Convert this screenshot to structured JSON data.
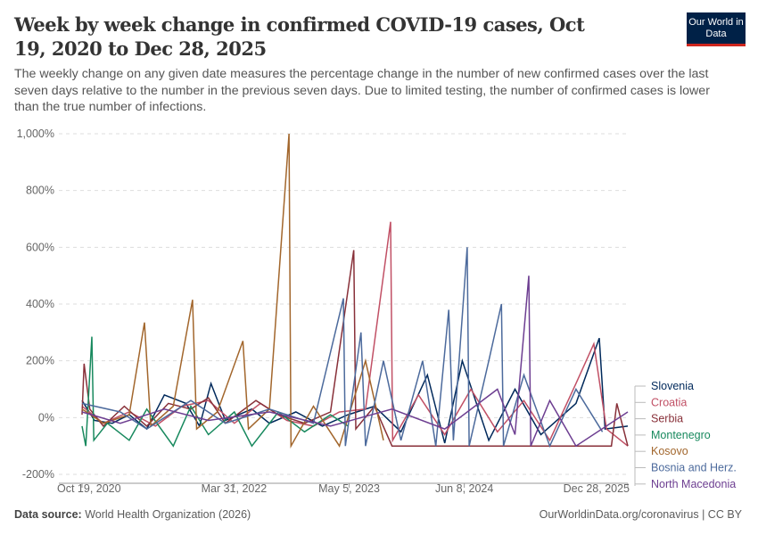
{
  "title": "Week by week change in confirmed COVID-19 cases, Oct 19, 2020 to Dec 28, 2025",
  "subtitle": "The weekly change on any given date measures the percentage change in the number of new confirmed cases over the last seven days relative to the number in the previous seven days. Due to limited testing, the number of confirmed cases is lower than the true number of infections.",
  "logo": "Our World in Data",
  "footer": {
    "source_label": "Data source:",
    "source": "World Health Organization (2026)",
    "right": "OurWorldinData.org/coronavirus | CC BY"
  },
  "chart_data": {
    "type": "line",
    "xlim": [
      "2020-10-19",
      "2025-12-28"
    ],
    "ylim": [
      -200,
      1000
    ],
    "y_ticks": [
      -200,
      0,
      200,
      400,
      600,
      800,
      1000
    ],
    "y_tick_labels": [
      "-200%",
      "0%",
      "200%",
      "400%",
      "600%",
      "800%",
      "1,000%"
    ],
    "x_ticks": [
      "2020-10-19",
      "2022-03-31",
      "2023-05-05",
      "2024-06-08",
      "2025-12-28"
    ],
    "x_tick_labels": [
      "Oct 19, 2020",
      "Mar 31, 2022",
      "May 5, 2023",
      "Jun 8, 2024",
      "Dec 28, 2025"
    ],
    "grid": true,
    "legend": "right",
    "series": [
      {
        "name": "Slovenia",
        "color": "#00295b",
        "points": [
          [
            "2020-10-19",
            60
          ],
          [
            "2020-12-01",
            -10
          ],
          [
            "2021-02-01",
            -20
          ],
          [
            "2021-04-01",
            10
          ],
          [
            "2021-06-01",
            -40
          ],
          [
            "2021-08-01",
            80
          ],
          [
            "2021-10-15",
            50
          ],
          [
            "2021-12-01",
            -30
          ],
          [
            "2022-01-10",
            120
          ],
          [
            "2022-03-01",
            -10
          ],
          [
            "2022-06-01",
            30
          ],
          [
            "2022-08-01",
            -20
          ],
          [
            "2022-11-01",
            20
          ],
          [
            "2023-02-01",
            -30
          ],
          [
            "2023-05-01",
            10
          ],
          [
            "2023-08-01",
            40
          ],
          [
            "2023-11-01",
            -50
          ],
          [
            "2024-02-01",
            150
          ],
          [
            "2024-04-01",
            -90
          ],
          [
            "2024-06-01",
            200
          ],
          [
            "2024-09-01",
            -80
          ],
          [
            "2024-12-01",
            100
          ],
          [
            "2025-03-01",
            -60
          ],
          [
            "2025-07-01",
            50
          ],
          [
            "2025-09-20",
            280
          ],
          [
            "2025-10-10",
            -40
          ],
          [
            "2025-12-28",
            -30
          ]
        ]
      },
      {
        "name": "Croatia",
        "color": "#c15065",
        "points": [
          [
            "2020-10-19",
            40
          ],
          [
            "2021-01-01",
            -20
          ],
          [
            "2021-04-01",
            20
          ],
          [
            "2021-07-01",
            -30
          ],
          [
            "2021-10-01",
            40
          ],
          [
            "2022-01-01",
            60
          ],
          [
            "2022-04-01",
            -20
          ],
          [
            "2022-07-01",
            50
          ],
          [
            "2022-10-01",
            -10
          ],
          [
            "2023-01-01",
            -30
          ],
          [
            "2023-04-01",
            20
          ],
          [
            "2023-07-01",
            30
          ],
          [
            "2023-09-26",
            690
          ],
          [
            "2023-10-03",
            -80
          ],
          [
            "2024-01-01",
            80
          ],
          [
            "2024-04-01",
            -60
          ],
          [
            "2024-07-01",
            100
          ],
          [
            "2024-10-01",
            -50
          ],
          [
            "2025-01-01",
            60
          ],
          [
            "2025-04-01",
            -80
          ],
          [
            "2025-07-01",
            120
          ],
          [
            "2025-09-01",
            260
          ],
          [
            "2025-10-15",
            -40
          ],
          [
            "2025-12-28",
            -100
          ]
        ]
      },
      {
        "name": "Serbia",
        "color": "#883039",
        "points": [
          [
            "2020-10-19",
            10
          ],
          [
            "2020-10-26",
            190
          ],
          [
            "2020-11-15",
            30
          ],
          [
            "2021-01-01",
            -30
          ],
          [
            "2021-03-15",
            40
          ],
          [
            "2021-06-01",
            -30
          ],
          [
            "2021-08-15",
            50
          ],
          [
            "2021-11-01",
            30
          ],
          [
            "2022-01-01",
            70
          ],
          [
            "2022-03-01",
            -20
          ],
          [
            "2022-06-15",
            60
          ],
          [
            "2022-09-01",
            10
          ],
          [
            "2022-12-01",
            -20
          ],
          [
            "2023-03-01",
            20
          ],
          [
            "2023-05-21",
            590
          ],
          [
            "2023-05-28",
            -40
          ],
          [
            "2023-08-01",
            40
          ],
          [
            "2023-10-01",
            -100
          ],
          [
            "2025-11-01",
            -100
          ],
          [
            "2025-11-20",
            50
          ],
          [
            "2025-12-28",
            -100
          ]
        ]
      },
      {
        "name": "Montenegro",
        "color": "#18895e",
        "points": [
          [
            "2020-10-19",
            -30
          ],
          [
            "2020-11-01",
            -100
          ],
          [
            "2020-11-22",
            285
          ],
          [
            "2020-11-29",
            -80
          ],
          [
            "2021-01-15",
            -20
          ],
          [
            "2021-04-01",
            -80
          ],
          [
            "2021-06-01",
            30
          ],
          [
            "2021-09-01",
            -100
          ],
          [
            "2021-11-01",
            40
          ],
          [
            "2022-01-01",
            -60
          ],
          [
            "2022-04-01",
            20
          ],
          [
            "2022-06-01",
            -100
          ],
          [
            "2022-09-01",
            20
          ],
          [
            "2022-12-01",
            -50
          ],
          [
            "2023-03-01",
            10
          ],
          [
            "2023-05-01",
            -30
          ]
        ]
      },
      {
        "name": "Kosovo",
        "color": "#a2662c",
        "points": [
          [
            "2020-10-19",
            30
          ],
          [
            "2021-01-01",
            -20
          ],
          [
            "2021-04-01",
            10
          ],
          [
            "2021-05-24",
            335
          ],
          [
            "2021-06-15",
            -30
          ],
          [
            "2021-09-01",
            40
          ],
          [
            "2021-11-07",
            415
          ],
          [
            "2021-11-21",
            -40
          ],
          [
            "2022-02-01",
            20
          ],
          [
            "2022-05-01",
            270
          ],
          [
            "2022-05-20",
            -40
          ],
          [
            "2022-08-01",
            30
          ],
          [
            "2022-10-08",
            1000
          ],
          [
            "2022-10-15",
            -100
          ],
          [
            "2023-01-01",
            40
          ],
          [
            "2023-04-01",
            -100
          ],
          [
            "2023-07-01",
            200
          ],
          [
            "2023-09-01",
            -80
          ]
        ]
      },
      {
        "name": "Bosnia and Herz.",
        "color": "#4c6a9c",
        "points": [
          [
            "2020-10-19",
            50
          ],
          [
            "2021-03-01",
            20
          ],
          [
            "2021-06-01",
            -40
          ],
          [
            "2021-11-01",
            60
          ],
          [
            "2022-03-01",
            -20
          ],
          [
            "2022-08-01",
            30
          ],
          [
            "2023-01-01",
            -20
          ],
          [
            "2023-04-15",
            420
          ],
          [
            "2023-04-22",
            -100
          ],
          [
            "2023-06-15",
            300
          ],
          [
            "2023-07-01",
            -100
          ],
          [
            "2023-09-01",
            200
          ],
          [
            "2023-11-01",
            -80
          ],
          [
            "2024-01-15",
            200
          ],
          [
            "2024-03-01",
            -100
          ],
          [
            "2024-04-15",
            380
          ],
          [
            "2024-05-01",
            -80
          ],
          [
            "2024-06-18",
            600
          ],
          [
            "2024-06-25",
            -100
          ],
          [
            "2024-09-01",
            200
          ],
          [
            "2024-10-15",
            400
          ],
          [
            "2024-10-22",
            -100
          ],
          [
            "2025-01-01",
            150
          ],
          [
            "2025-04-01",
            -100
          ],
          [
            "2025-07-01",
            100
          ],
          [
            "2025-10-01",
            -50
          ]
        ]
      },
      {
        "name": "North Macedonia",
        "color": "#6d3e91",
        "points": [
          [
            "2020-10-19",
            20
          ],
          [
            "2021-03-01",
            -20
          ],
          [
            "2021-08-01",
            30
          ],
          [
            "2022-01-01",
            -10
          ],
          [
            "2022-08-01",
            20
          ],
          [
            "2023-03-01",
            -30
          ],
          [
            "2023-10-01",
            30
          ],
          [
            "2024-04-01",
            -40
          ],
          [
            "2024-10-01",
            100
          ],
          [
            "2024-12-01",
            -60
          ],
          [
            "2025-01-18",
            500
          ],
          [
            "2025-01-25",
            -100
          ],
          [
            "2025-04-01",
            60
          ],
          [
            "2025-07-01",
            -100
          ],
          [
            "2025-12-28",
            20
          ]
        ]
      }
    ]
  }
}
